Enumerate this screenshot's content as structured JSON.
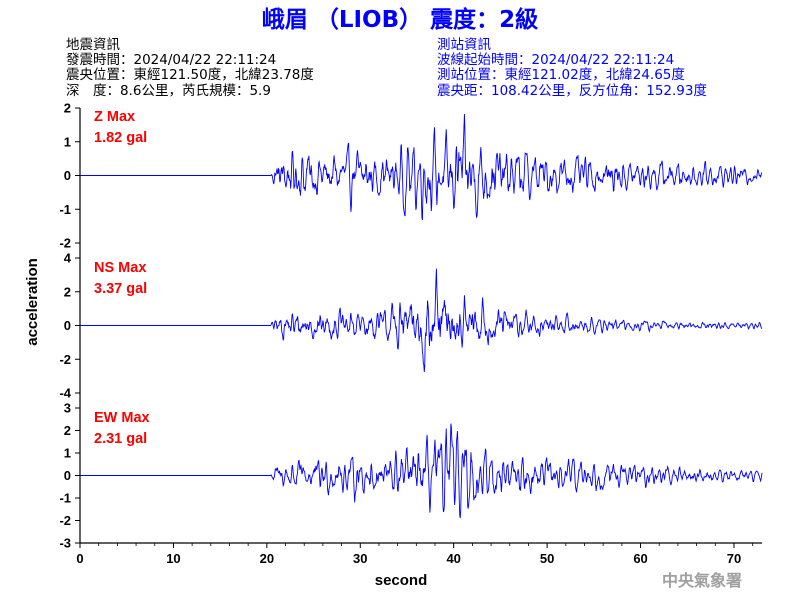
{
  "title": "峨眉 （LIOB） 震度：2級",
  "colors": {
    "title": "#0000ff",
    "station_info": "#0000ff",
    "quake_info": "#000000",
    "trace": "#0000ff",
    "max_label": "#ff0000",
    "agency": "#a0a0a0",
    "axes": "#000000"
  },
  "quake_info": {
    "heading": "地震資訊",
    "origin_time": "發震時間：2024/04/22 22:11:24",
    "epicenter": "震央位置：東經121.50度，北緯23.78度",
    "depth_magnitude": "深　度：8.6公里，芮氏規模：5.9"
  },
  "station_info": {
    "heading": "測站資訊",
    "wave_start": "波線起始時間：2024/04/22 22:11:24",
    "location": "測站位置：東經121.02度，北緯24.65度",
    "distance": "震央距：108.42公里，反方位角：152.93度"
  },
  "agency": "中央氣象署",
  "chart_data": {
    "type": "line",
    "xlabel": "second",
    "ylabel": "acceleration",
    "xlim": [
      0,
      73
    ],
    "xticks": [
      "0",
      "10",
      "20",
      "30",
      "40",
      "50",
      "60",
      "70"
    ],
    "signal_onset_s": 20.3,
    "panels": [
      {
        "component": "Z",
        "max_title": "Z Max",
        "max_value": "1.82 gal",
        "peak": 1.82,
        "ylim": [
          -2,
          2
        ],
        "yticks": [
          "2",
          "1",
          "0",
          "-1",
          "-2"
        ]
      },
      {
        "component": "NS",
        "max_title": "NS Max",
        "max_value": "3.37 gal",
        "peak": 3.37,
        "ylim": [
          -4,
          4
        ],
        "yticks": [
          "4",
          "2",
          "0",
          "-2",
          "-4"
        ]
      },
      {
        "component": "EW",
        "max_title": "EW Max",
        "max_value": "2.31 gal",
        "peak": 2.31,
        "ylim": [
          -3,
          3
        ],
        "yticks": [
          "3",
          "2",
          "1",
          "0",
          "-1",
          "-2",
          "-3"
        ]
      }
    ]
  }
}
